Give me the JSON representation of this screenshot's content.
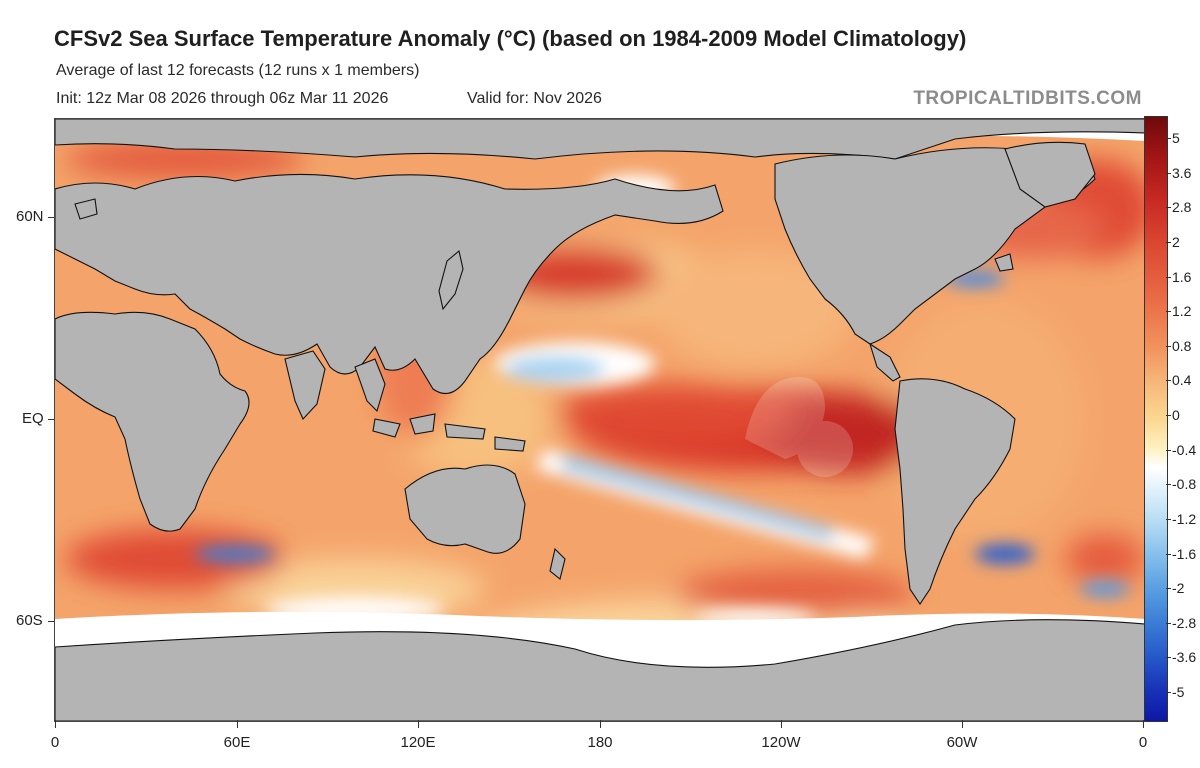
{
  "header": {
    "title": "CFSv2 Sea Surface Temperature Anomaly (°C) (based on 1984-2009 Model Climatology)",
    "subtitle": "Average of last 12 forecasts (12 runs x 1 members)",
    "init": "Init: 12z Mar 08 2026 through 06z Mar 11 2026",
    "valid": "Valid for: Nov 2026",
    "credit": "TROPICALTIDBITS.COM"
  },
  "map": {
    "lat_labels": [
      "60N",
      "EQ",
      "60S"
    ],
    "lon_labels": [
      "0",
      "60E",
      "120E",
      "180",
      "120W",
      "60W",
      "0"
    ],
    "land_color": "#b4b4b4",
    "ice_color": "#ffffff",
    "coast_color": "#111111"
  },
  "colorbar": {
    "labels": [
      "5",
      "3.6",
      "2.8",
      "2",
      "1.6",
      "1.2",
      "0.8",
      "0.4",
      "0",
      "-0.4",
      "-0.8",
      "-1.2",
      "-1.6",
      "-2",
      "-2.8",
      "-3.6",
      "-5"
    ],
    "unit": "°C"
  }
}
